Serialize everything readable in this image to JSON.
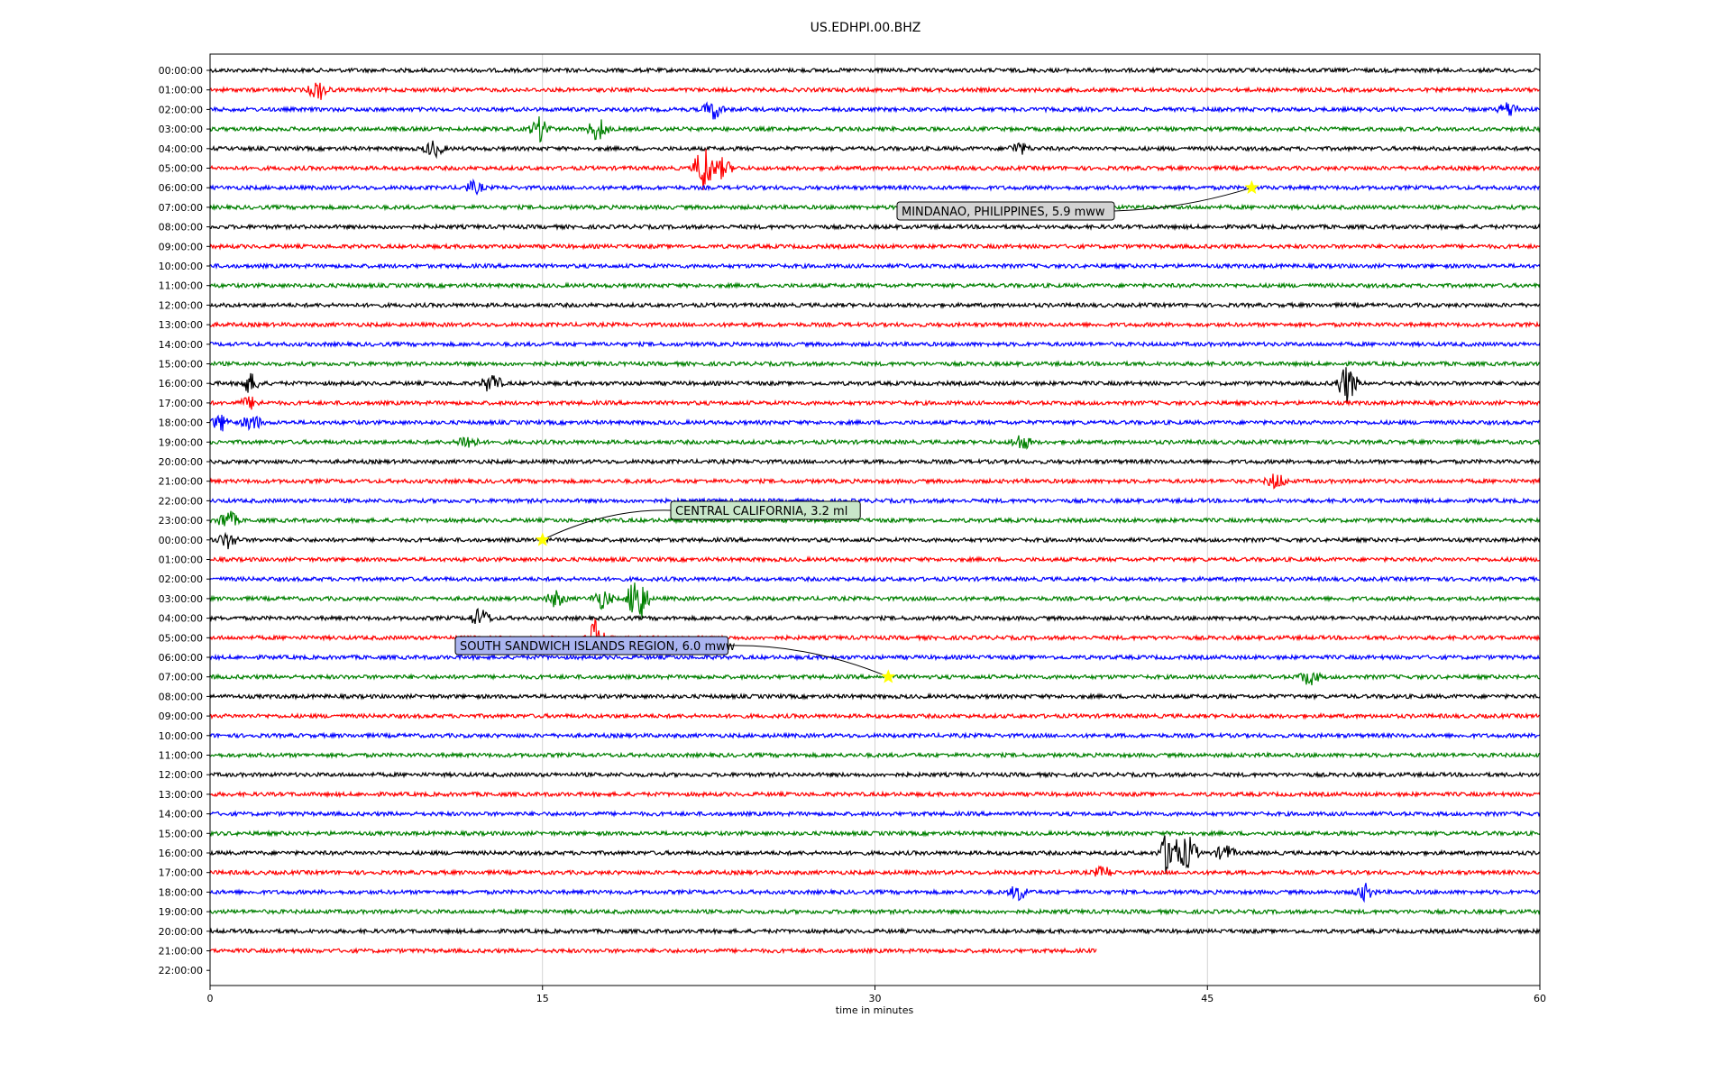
{
  "chart_data": {
    "type": "line",
    "title": "US.EDHPI.00.BHZ",
    "xlabel": "time in minutes",
    "ylabel": "",
    "xlim": [
      0,
      60
    ],
    "xticks": [
      "0",
      "15",
      "30",
      "45",
      "60"
    ],
    "xtick_values": [
      0,
      15,
      30,
      45,
      60
    ],
    "grid": "vertical lines at x ticks",
    "row_labels": [
      "00:00:00",
      "01:00:00",
      "02:00:00",
      "03:00:00",
      "04:00:00",
      "05:00:00",
      "06:00:00",
      "07:00:00",
      "08:00:00",
      "09:00:00",
      "10:00:00",
      "11:00:00",
      "12:00:00",
      "13:00:00",
      "14:00:00",
      "15:00:00",
      "16:00:00",
      "17:00:00",
      "18:00:00",
      "19:00:00",
      "20:00:00",
      "21:00:00",
      "22:00:00",
      "23:00:00",
      "00:00:00",
      "01:00:00",
      "02:00:00",
      "03:00:00",
      "04:00:00",
      "05:00:00",
      "06:00:00",
      "07:00:00",
      "08:00:00",
      "09:00:00",
      "10:00:00",
      "11:00:00",
      "12:00:00",
      "13:00:00",
      "14:00:00",
      "15:00:00",
      "16:00:00",
      "17:00:00",
      "18:00:00",
      "19:00:00",
      "20:00:00",
      "21:00:00",
      "22:00:00"
    ],
    "trace_color_cycle": [
      "#000000",
      "#ff0000",
      "#0000ff",
      "#008000"
    ],
    "trace_color_offset": 0,
    "last_trace_end_minute": 40.0,
    "bursts": [
      {
        "row": 1,
        "minute": 4.9,
        "amp": 0.5
      },
      {
        "row": 2,
        "minute": 22.7,
        "amp": 0.5
      },
      {
        "row": 2,
        "minute": 58.6,
        "amp": 0.4
      },
      {
        "row": 3,
        "minute": 14.9,
        "amp": 0.6
      },
      {
        "row": 3,
        "minute": 17.5,
        "amp": 0.6
      },
      {
        "row": 4,
        "minute": 10.1,
        "amp": 0.4
      },
      {
        "row": 4,
        "minute": 36.5,
        "amp": 0.3
      },
      {
        "row": 5,
        "minute": 22.3,
        "amp": 1.3
      },
      {
        "row": 5,
        "minute": 23.1,
        "amp": 0.5
      },
      {
        "row": 6,
        "minute": 11.9,
        "amp": 0.3
      },
      {
        "row": 16,
        "minute": 1.8,
        "amp": 0.5
      },
      {
        "row": 16,
        "minute": 12.7,
        "amp": 0.5
      },
      {
        "row": 16,
        "minute": 51.3,
        "amp": 1.0
      },
      {
        "row": 17,
        "minute": 1.8,
        "amp": 0.3
      },
      {
        "row": 18,
        "minute": 0.5,
        "amp": 0.4
      },
      {
        "row": 18,
        "minute": 1.9,
        "amp": 0.4
      },
      {
        "row": 19,
        "minute": 11.6,
        "amp": 0.4
      },
      {
        "row": 19,
        "minute": 36.6,
        "amp": 0.4
      },
      {
        "row": 21,
        "minute": 48.1,
        "amp": 0.4
      },
      {
        "row": 23,
        "minute": 0.8,
        "amp": 0.5
      },
      {
        "row": 24,
        "minute": 0.8,
        "amp": 0.4
      },
      {
        "row": 27,
        "minute": 15.6,
        "amp": 0.4
      },
      {
        "row": 27,
        "minute": 17.7,
        "amp": 0.5
      },
      {
        "row": 27,
        "minute": 19.3,
        "amp": 1.5
      },
      {
        "row": 28,
        "minute": 12.2,
        "amp": 0.5
      },
      {
        "row": 29,
        "minute": 17.4,
        "amp": 1.0
      },
      {
        "row": 31,
        "minute": 49.6,
        "amp": 0.4
      },
      {
        "row": 40,
        "minute": 43.3,
        "amp": 1.4
      },
      {
        "row": 40,
        "minute": 44.1,
        "amp": 0.9
      },
      {
        "row": 40,
        "minute": 45.8,
        "amp": 0.4
      },
      {
        "row": 41,
        "minute": 40.3,
        "amp": 0.3
      },
      {
        "row": 42,
        "minute": 36.5,
        "amp": 0.4
      },
      {
        "row": 42,
        "minute": 52.1,
        "amp": 0.4
      }
    ],
    "events": [
      {
        "label": "MINDANAO, PHILIPPINES, 5.9 mww",
        "row": 6,
        "minute": 47.0,
        "box_color": "#d3d3d3",
        "box_side": "left"
      },
      {
        "label": "CENTRAL CALIFORNIA, 3.2 ml",
        "row": 24,
        "minute": 15.0,
        "box_color": "#c8e6c9",
        "box_side": "right"
      },
      {
        "label": "SOUTH SANDWICH ISLANDS REGION, 6.0 mww",
        "row": 31,
        "minute": 30.6,
        "box_color": "#aab4f0",
        "box_side": "left"
      }
    ],
    "event_marker": "yellow star"
  }
}
